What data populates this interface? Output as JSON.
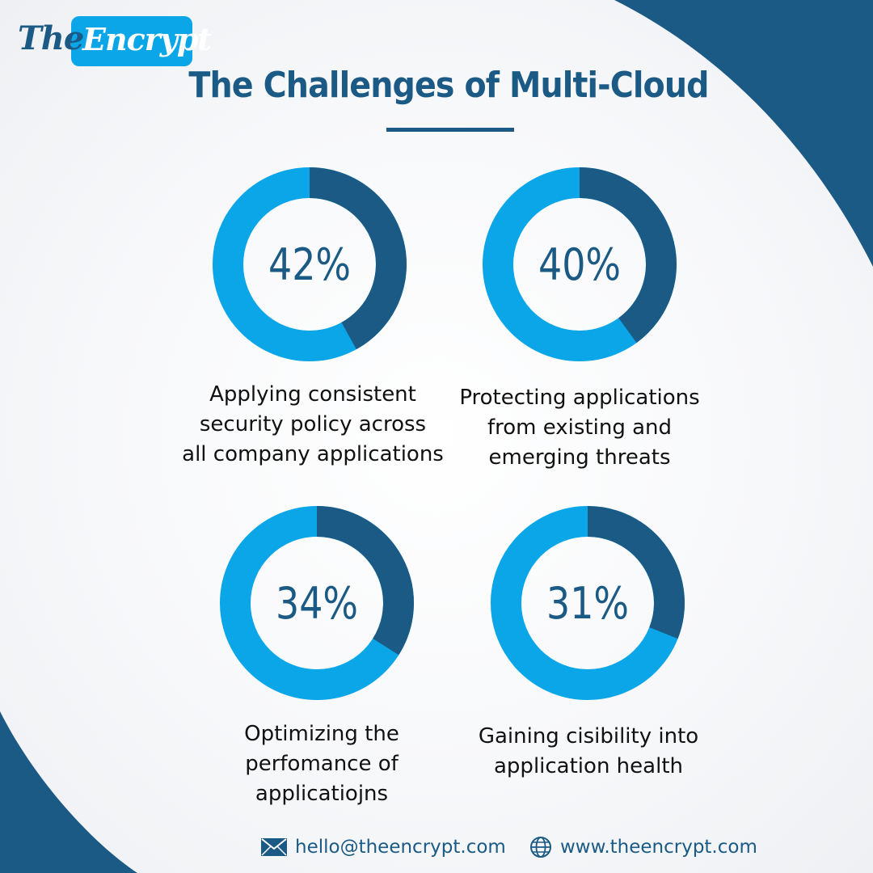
{
  "brand": {
    "logo_part1": "The",
    "logo_part2": "Encrypt"
  },
  "title": "The Challenges of Multi-Cloud",
  "colors": {
    "primary": "#1b5a85",
    "accent": "#0aa6e8",
    "text": "#111111"
  },
  "chart_data": [
    {
      "type": "pie",
      "label": "42%",
      "value": 42,
      "caption": [
        "Applying consistent",
        "security policy across",
        "all company applications"
      ]
    },
    {
      "type": "pie",
      "label": "40%",
      "value": 40,
      "caption": [
        "Protecting applications",
        "from existing and",
        "emerging threats"
      ]
    },
    {
      "type": "pie",
      "label": "34%",
      "value": 34,
      "caption": [
        "Optimizing the",
        "perfomance of",
        "applicatiojns"
      ]
    },
    {
      "type": "pie",
      "label": "31%",
      "value": 31,
      "caption": [
        "Gaining cisibility into",
        "application health"
      ]
    }
  ],
  "footer": {
    "email": "hello@theencrypt.com",
    "email_icon": "envelope-icon",
    "website": "www.theencrypt.com",
    "website_icon": "globe-icon"
  }
}
